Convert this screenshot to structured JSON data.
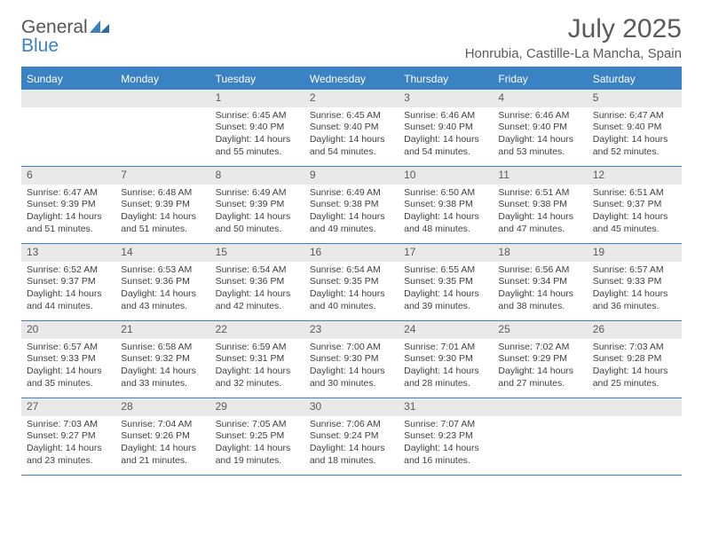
{
  "logo": {
    "word1": "General",
    "word2": "Blue"
  },
  "colors": {
    "accent": "#3a82c4",
    "band": "#e9e9e9",
    "text": "#404040",
    "heading": "#5a5a5a",
    "bg": "#ffffff"
  },
  "title": "July 2025",
  "location": "Honrubia, Castille-La Mancha, Spain",
  "weekdays": [
    "Sunday",
    "Monday",
    "Tuesday",
    "Wednesday",
    "Thursday",
    "Friday",
    "Saturday"
  ],
  "weeks": [
    [
      null,
      null,
      {
        "n": "1",
        "sunrise": "Sunrise: 6:45 AM",
        "sunset": "Sunset: 9:40 PM",
        "day1": "Daylight: 14 hours",
        "day2": "and 55 minutes."
      },
      {
        "n": "2",
        "sunrise": "Sunrise: 6:45 AM",
        "sunset": "Sunset: 9:40 PM",
        "day1": "Daylight: 14 hours",
        "day2": "and 54 minutes."
      },
      {
        "n": "3",
        "sunrise": "Sunrise: 6:46 AM",
        "sunset": "Sunset: 9:40 PM",
        "day1": "Daylight: 14 hours",
        "day2": "and 54 minutes."
      },
      {
        "n": "4",
        "sunrise": "Sunrise: 6:46 AM",
        "sunset": "Sunset: 9:40 PM",
        "day1": "Daylight: 14 hours",
        "day2": "and 53 minutes."
      },
      {
        "n": "5",
        "sunrise": "Sunrise: 6:47 AM",
        "sunset": "Sunset: 9:40 PM",
        "day1": "Daylight: 14 hours",
        "day2": "and 52 minutes."
      }
    ],
    [
      {
        "n": "6",
        "sunrise": "Sunrise: 6:47 AM",
        "sunset": "Sunset: 9:39 PM",
        "day1": "Daylight: 14 hours",
        "day2": "and 51 minutes."
      },
      {
        "n": "7",
        "sunrise": "Sunrise: 6:48 AM",
        "sunset": "Sunset: 9:39 PM",
        "day1": "Daylight: 14 hours",
        "day2": "and 51 minutes."
      },
      {
        "n": "8",
        "sunrise": "Sunrise: 6:49 AM",
        "sunset": "Sunset: 9:39 PM",
        "day1": "Daylight: 14 hours",
        "day2": "and 50 minutes."
      },
      {
        "n": "9",
        "sunrise": "Sunrise: 6:49 AM",
        "sunset": "Sunset: 9:38 PM",
        "day1": "Daylight: 14 hours",
        "day2": "and 49 minutes."
      },
      {
        "n": "10",
        "sunrise": "Sunrise: 6:50 AM",
        "sunset": "Sunset: 9:38 PM",
        "day1": "Daylight: 14 hours",
        "day2": "and 48 minutes."
      },
      {
        "n": "11",
        "sunrise": "Sunrise: 6:51 AM",
        "sunset": "Sunset: 9:38 PM",
        "day1": "Daylight: 14 hours",
        "day2": "and 47 minutes."
      },
      {
        "n": "12",
        "sunrise": "Sunrise: 6:51 AM",
        "sunset": "Sunset: 9:37 PM",
        "day1": "Daylight: 14 hours",
        "day2": "and 45 minutes."
      }
    ],
    [
      {
        "n": "13",
        "sunrise": "Sunrise: 6:52 AM",
        "sunset": "Sunset: 9:37 PM",
        "day1": "Daylight: 14 hours",
        "day2": "and 44 minutes."
      },
      {
        "n": "14",
        "sunrise": "Sunrise: 6:53 AM",
        "sunset": "Sunset: 9:36 PM",
        "day1": "Daylight: 14 hours",
        "day2": "and 43 minutes."
      },
      {
        "n": "15",
        "sunrise": "Sunrise: 6:54 AM",
        "sunset": "Sunset: 9:36 PM",
        "day1": "Daylight: 14 hours",
        "day2": "and 42 minutes."
      },
      {
        "n": "16",
        "sunrise": "Sunrise: 6:54 AM",
        "sunset": "Sunset: 9:35 PM",
        "day1": "Daylight: 14 hours",
        "day2": "and 40 minutes."
      },
      {
        "n": "17",
        "sunrise": "Sunrise: 6:55 AM",
        "sunset": "Sunset: 9:35 PM",
        "day1": "Daylight: 14 hours",
        "day2": "and 39 minutes."
      },
      {
        "n": "18",
        "sunrise": "Sunrise: 6:56 AM",
        "sunset": "Sunset: 9:34 PM",
        "day1": "Daylight: 14 hours",
        "day2": "and 38 minutes."
      },
      {
        "n": "19",
        "sunrise": "Sunrise: 6:57 AM",
        "sunset": "Sunset: 9:33 PM",
        "day1": "Daylight: 14 hours",
        "day2": "and 36 minutes."
      }
    ],
    [
      {
        "n": "20",
        "sunrise": "Sunrise: 6:57 AM",
        "sunset": "Sunset: 9:33 PM",
        "day1": "Daylight: 14 hours",
        "day2": "and 35 minutes."
      },
      {
        "n": "21",
        "sunrise": "Sunrise: 6:58 AM",
        "sunset": "Sunset: 9:32 PM",
        "day1": "Daylight: 14 hours",
        "day2": "and 33 minutes."
      },
      {
        "n": "22",
        "sunrise": "Sunrise: 6:59 AM",
        "sunset": "Sunset: 9:31 PM",
        "day1": "Daylight: 14 hours",
        "day2": "and 32 minutes."
      },
      {
        "n": "23",
        "sunrise": "Sunrise: 7:00 AM",
        "sunset": "Sunset: 9:30 PM",
        "day1": "Daylight: 14 hours",
        "day2": "and 30 minutes."
      },
      {
        "n": "24",
        "sunrise": "Sunrise: 7:01 AM",
        "sunset": "Sunset: 9:30 PM",
        "day1": "Daylight: 14 hours",
        "day2": "and 28 minutes."
      },
      {
        "n": "25",
        "sunrise": "Sunrise: 7:02 AM",
        "sunset": "Sunset: 9:29 PM",
        "day1": "Daylight: 14 hours",
        "day2": "and 27 minutes."
      },
      {
        "n": "26",
        "sunrise": "Sunrise: 7:03 AM",
        "sunset": "Sunset: 9:28 PM",
        "day1": "Daylight: 14 hours",
        "day2": "and 25 minutes."
      }
    ],
    [
      {
        "n": "27",
        "sunrise": "Sunrise: 7:03 AM",
        "sunset": "Sunset: 9:27 PM",
        "day1": "Daylight: 14 hours",
        "day2": "and 23 minutes."
      },
      {
        "n": "28",
        "sunrise": "Sunrise: 7:04 AM",
        "sunset": "Sunset: 9:26 PM",
        "day1": "Daylight: 14 hours",
        "day2": "and 21 minutes."
      },
      {
        "n": "29",
        "sunrise": "Sunrise: 7:05 AM",
        "sunset": "Sunset: 9:25 PM",
        "day1": "Daylight: 14 hours",
        "day2": "and 19 minutes."
      },
      {
        "n": "30",
        "sunrise": "Sunrise: 7:06 AM",
        "sunset": "Sunset: 9:24 PM",
        "day1": "Daylight: 14 hours",
        "day2": "and 18 minutes."
      },
      {
        "n": "31",
        "sunrise": "Sunrise: 7:07 AM",
        "sunset": "Sunset: 9:23 PM",
        "day1": "Daylight: 14 hours",
        "day2": "and 16 minutes."
      },
      null,
      null
    ]
  ]
}
